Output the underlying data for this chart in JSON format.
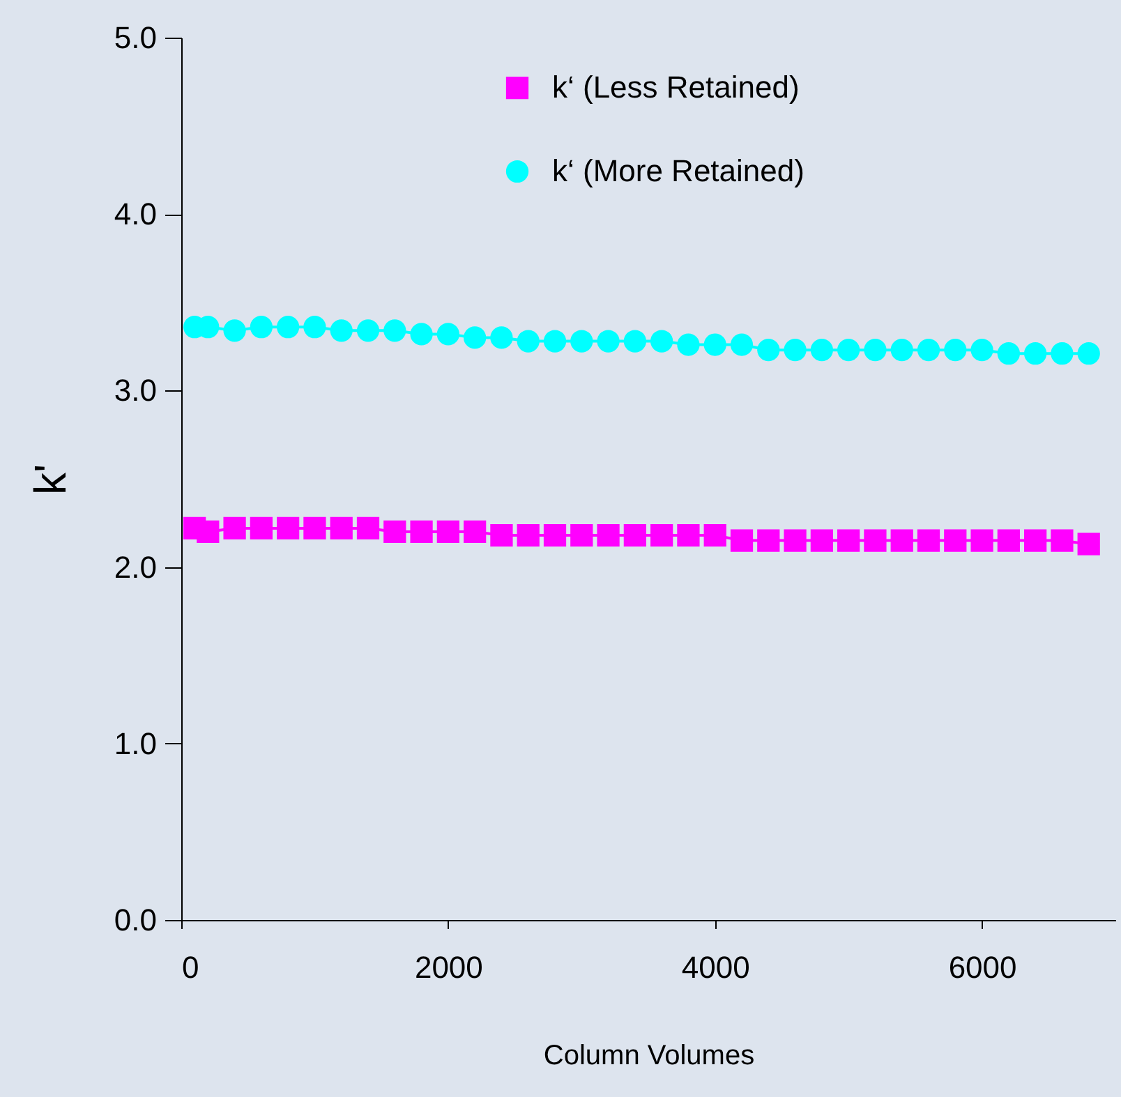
{
  "chart_data": {
    "type": "line",
    "xlabel": "Column Volumes",
    "ylabel": "k'",
    "x": [
      100,
      200,
      400,
      600,
      800,
      1000,
      1200,
      1400,
      1600,
      1800,
      2000,
      2200,
      2400,
      2600,
      2800,
      3000,
      3200,
      3400,
      3600,
      3800,
      4000,
      4200,
      4400,
      4600,
      4800,
      5000,
      5200,
      5400,
      5600,
      5800,
      6000,
      6200,
      6400,
      6600,
      6800
    ],
    "series": [
      {
        "name": "k‘ (Less Retained)",
        "color": "#ff00ff",
        "marker": "square",
        "values": [
          2.22,
          2.2,
          2.22,
          2.22,
          2.22,
          2.22,
          2.22,
          2.22,
          2.2,
          2.2,
          2.2,
          2.2,
          2.18,
          2.18,
          2.18,
          2.18,
          2.18,
          2.18,
          2.18,
          2.18,
          2.18,
          2.15,
          2.15,
          2.15,
          2.15,
          2.15,
          2.15,
          2.15,
          2.15,
          2.15,
          2.15,
          2.15,
          2.15,
          2.15,
          2.13
        ]
      },
      {
        "name": "k‘ (More Retained)",
        "color": "#00ffff",
        "marker": "circle",
        "values": [
          3.36,
          3.36,
          3.34,
          3.36,
          3.36,
          3.36,
          3.34,
          3.34,
          3.34,
          3.32,
          3.32,
          3.3,
          3.3,
          3.28,
          3.28,
          3.28,
          3.28,
          3.28,
          3.28,
          3.26,
          3.26,
          3.26,
          3.23,
          3.23,
          3.23,
          3.23,
          3.23,
          3.23,
          3.23,
          3.23,
          3.23,
          3.21,
          3.21,
          3.21,
          3.21
        ]
      }
    ],
    "xlim": [
      0,
      7000
    ],
    "xticks": [
      0,
      2000,
      4000,
      6000
    ],
    "ylim": [
      0,
      5
    ],
    "yticks": [
      {
        "value": 0,
        "label": "0.0"
      },
      {
        "value": 1,
        "label": "1.0"
      },
      {
        "value": 2,
        "label": "2.0"
      },
      {
        "value": 3,
        "label": "3.0"
      },
      {
        "value": 4,
        "label": "4.0"
      },
      {
        "value": 5,
        "label": "5.0"
      }
    ],
    "legend": "top right",
    "grid": false,
    "line_style": "solid"
  }
}
